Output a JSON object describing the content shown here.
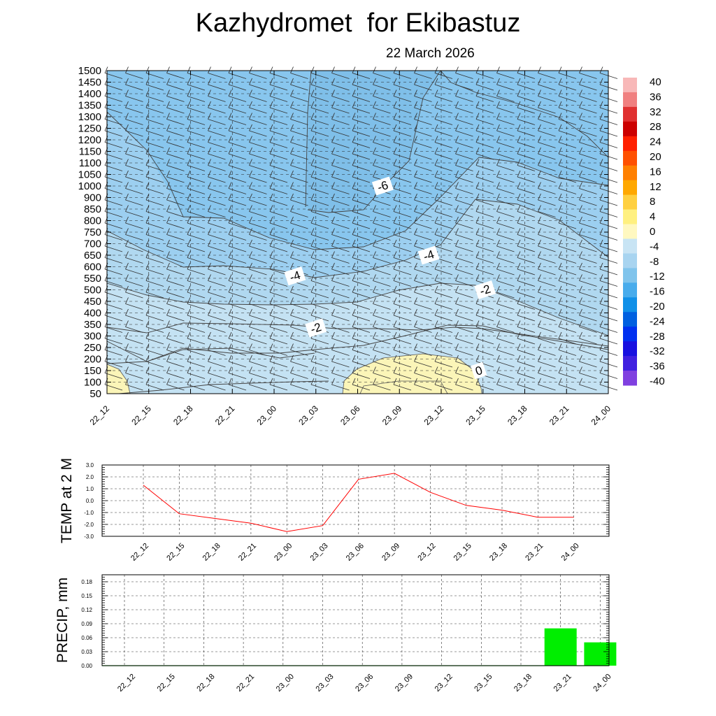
{
  "title": "Kazhydromet  for Ekibastuz",
  "subtitle": "22 March 2026",
  "chart_data": [
    {
      "type": "heatmap",
      "name": "cross-section",
      "x_categories": [
        "22_12",
        "22_15",
        "22_18",
        "22_21",
        "23_00",
        "23_03",
        "23_06",
        "23_09",
        "23_12",
        "23_15",
        "23_18",
        "23_21",
        "24_00"
      ],
      "y_ticks": [
        50,
        100,
        150,
        200,
        250,
        300,
        350,
        400,
        450,
        500,
        550,
        600,
        650,
        700,
        750,
        800,
        850,
        900,
        1000,
        1050,
        1100,
        1150,
        1200,
        1250,
        1300,
        1350,
        1400,
        1450,
        1500
      ],
      "y_tick_labels": [
        "50",
        "100",
        "150",
        "200",
        "250",
        "300",
        "350",
        "400",
        "450",
        "500",
        "550",
        "600",
        "650",
        "700",
        "750",
        "800",
        "850",
        "900",
        "1000",
        "1050",
        "1100",
        "1150",
        "1200",
        "1250",
        "1300",
        "1350",
        "1400",
        "1450",
        "1500"
      ],
      "contour_labels": [
        {
          "text": "-6",
          "x": 6.6,
          "y": 1000
        },
        {
          "text": "-4",
          "x": 4.5,
          "y": 560
        },
        {
          "text": "-4",
          "x": 7.7,
          "y": 650
        },
        {
          "text": "-2",
          "x": 5.0,
          "y": 335
        },
        {
          "text": "-2",
          "x": 9.05,
          "y": 500
        },
        {
          "text": "0",
          "x": 8.9,
          "y": 150
        }
      ],
      "colorbar": {
        "labels": [
          "40",
          "36",
          "32",
          "28",
          "24",
          "20",
          "16",
          "12",
          "8",
          "4",
          "0",
          "-4",
          "-8",
          "-12",
          "-16",
          "-20",
          "-24",
          "-28",
          "-32",
          "-36",
          "-40"
        ],
        "range": [
          -40,
          40
        ],
        "colors": [
          "#f8b8b8",
          "#f08080",
          "#e03030",
          "#cc0000",
          "#ff2000",
          "#ff5000",
          "#ff8000",
          "#ffa800",
          "#ffd040",
          "#fff080",
          "#fff8c0",
          "#c8e4f4",
          "#a8d4f0",
          "#80c4ec",
          "#48acec",
          "#1090e8",
          "#0060e0",
          "#0030f0",
          "#1810e0",
          "#4020e0",
          "#8040e0"
        ]
      }
    },
    {
      "type": "line",
      "ylabel": "TEMP at 2 M",
      "categories": [
        "22_12",
        "22_15",
        "22_18",
        "22_21",
        "23_00",
        "23_03",
        "23_06",
        "23_09",
        "23_12",
        "23_15",
        "23_18",
        "23_21",
        "24_00"
      ],
      "values": [
        1.3,
        -1.1,
        -1.5,
        -1.9,
        -2.6,
        -2.1,
        1.8,
        2.3,
        0.7,
        -0.4,
        -0.8,
        -1.4,
        -1.4
      ],
      "yticks": [
        "3.0",
        "2.0",
        "1.0",
        "0.0",
        "-1.0",
        "-2.0",
        "-3.0"
      ],
      "ylim": [
        -3,
        3
      ],
      "color": "#ff0000"
    },
    {
      "type": "bar",
      "ylabel": "PRECIP, mm",
      "categories": [
        "22_12",
        "22_15",
        "22_18",
        "22_21",
        "23_00",
        "23_03",
        "23_06",
        "23_09",
        "23_12",
        "23_15",
        "23_18",
        "23_21",
        "24_00"
      ],
      "values": [
        0,
        0,
        0,
        0,
        0,
        0,
        0,
        0,
        0,
        0,
        0,
        0.08,
        0.05
      ],
      "yticks": [
        "0.18",
        "0.15",
        "0.12",
        "0.09",
        "0.06",
        "0.03",
        "0.00"
      ],
      "ylim": [
        0,
        0.195
      ],
      "color": "#00ee00"
    }
  ]
}
